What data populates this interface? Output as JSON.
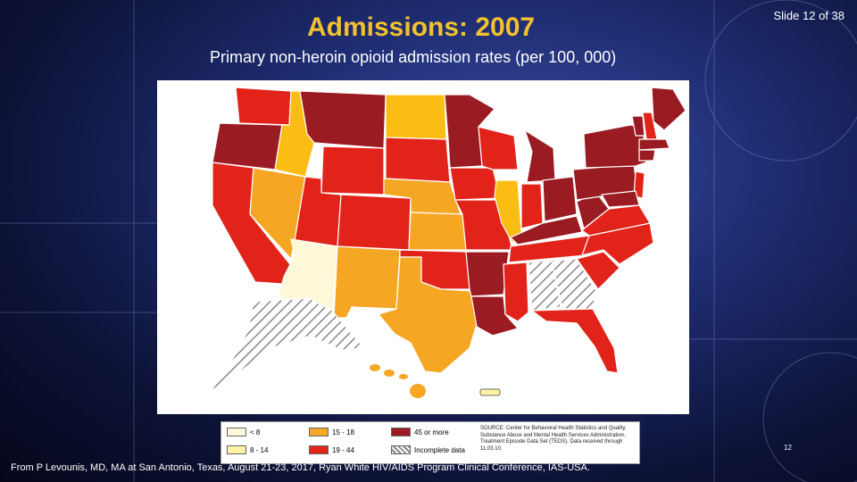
{
  "slide": {
    "title": "Admissions: 2007",
    "slide_number": "Slide 12 of 38",
    "subtitle": "Primary non-heroin opioid admission rates (per 100, 000)",
    "page_number": "12",
    "footer": "From P Levounis, MD, MA at San Antonio, Texas, August 21-23, 2017, Ryan White HIV/AIDS Program Clinical Conference, IAS-USA."
  },
  "map": {
    "legend": {
      "items": [
        {
          "label": "< 8",
          "color": "#fff8d8"
        },
        {
          "label": "8 - 14",
          "color": "#fff2a6"
        },
        {
          "label": "15 - 18",
          "color": "#f5a623"
        },
        {
          "label": "19 - 44",
          "color": "#e2231a"
        },
        {
          "label": "45 or more",
          "color": "#9b1b22"
        },
        {
          "label": "Incomplete data",
          "color": "hatch"
        }
      ],
      "source": "SOURCE: Center for Behavioral Health Statistics and Quality, Substance Abuse and Mental Health Services Administration, Treatment Episode Data Set (TEDS). Data received through 11.03.10."
    },
    "colors": {
      "dark_red": "#9b1b22",
      "red": "#e2231a",
      "orange": "#f5a623",
      "yellow": "#fbbd13",
      "pale": "#fff8d8"
    }
  }
}
